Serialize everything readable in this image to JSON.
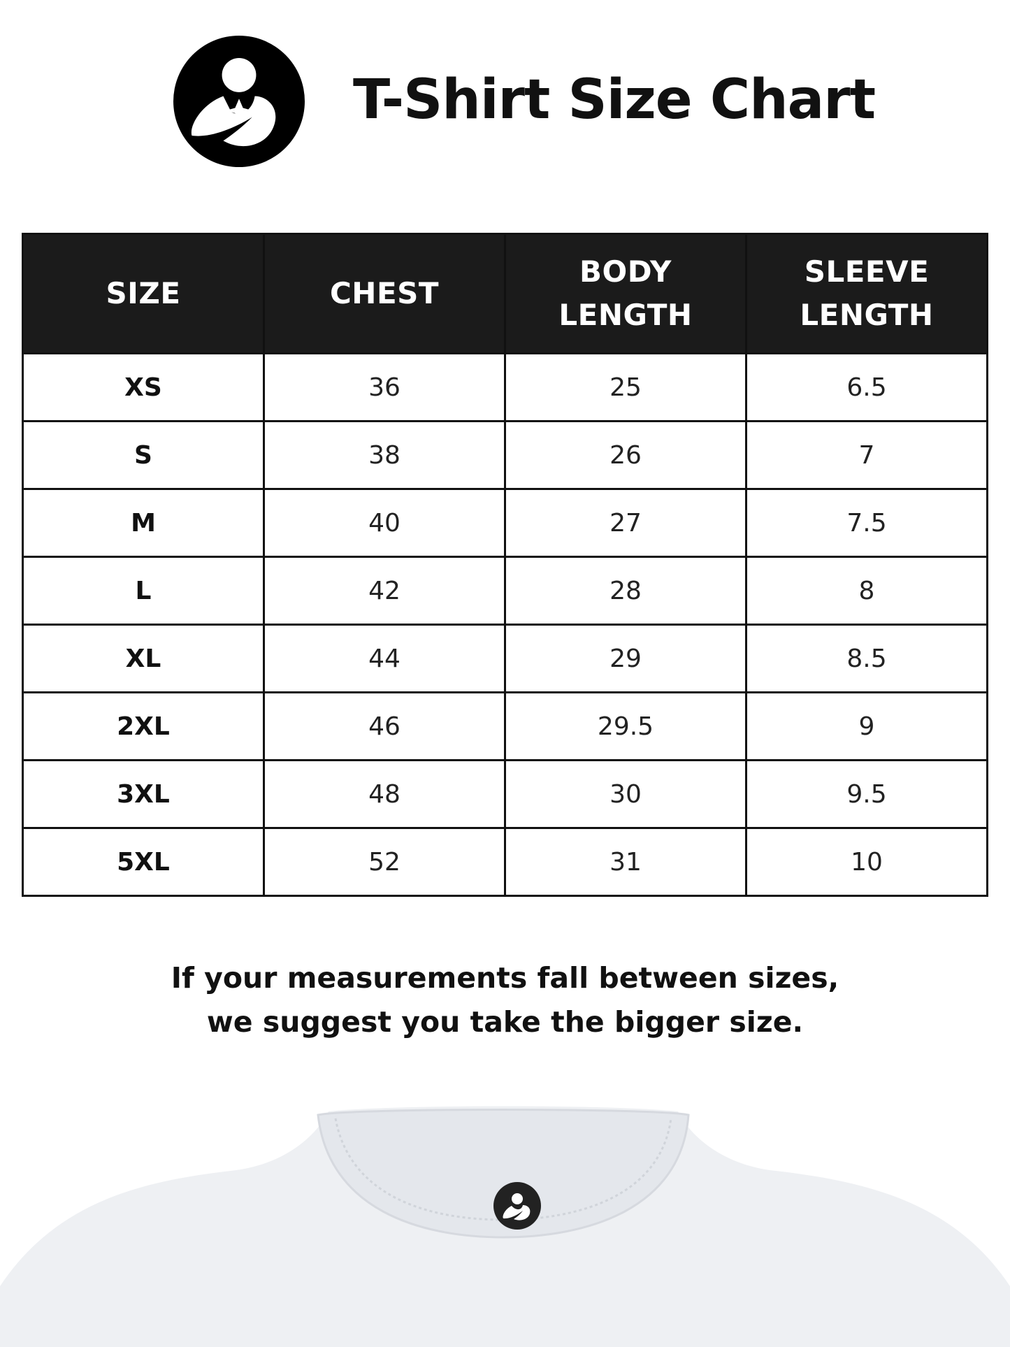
{
  "header": {
    "title": "T-Shirt Size Chart",
    "logo_icon": "mother-holding-baby-logo"
  },
  "table": {
    "columns": [
      {
        "line1": "SIZE",
        "line2": ""
      },
      {
        "line1": "CHEST",
        "line2": ""
      },
      {
        "line1": "BODY",
        "line2": "LENGTH"
      },
      {
        "line1": "SLEEVE",
        "line2": "LENGTH"
      }
    ],
    "rows": [
      [
        "XS",
        "36",
        "25",
        "6.5"
      ],
      [
        "S",
        "38",
        "26",
        "7"
      ],
      [
        "M",
        "40",
        "27",
        "7.5"
      ],
      [
        "L",
        "42",
        "28",
        "8"
      ],
      [
        "XL",
        "44",
        "29",
        "8.5"
      ],
      [
        "2XL",
        "46",
        "29.5",
        "9"
      ],
      [
        "3XL",
        "48",
        "30",
        "9.5"
      ],
      [
        "5XL",
        "52",
        "31",
        "10"
      ]
    ]
  },
  "note": {
    "line1": "If your measurements fall between sizes,",
    "line2": "we suggest you take the bigger size."
  },
  "colors": {
    "header_bg": "#1b1b1b",
    "shirt": "#eef0f3"
  }
}
